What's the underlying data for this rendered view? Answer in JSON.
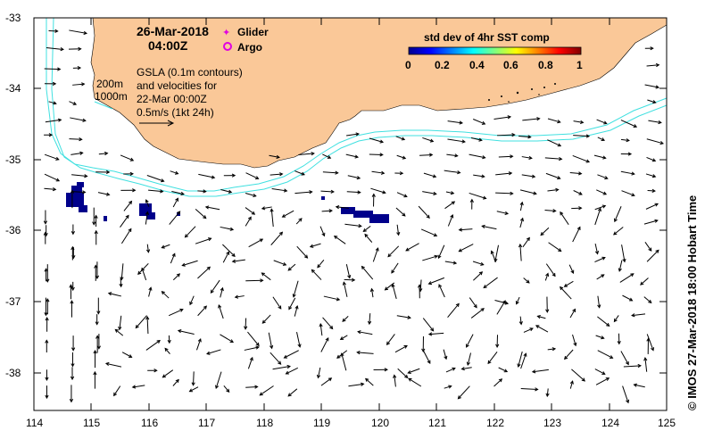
{
  "map": {
    "date": "26-Mar-2018",
    "time": "04:00Z",
    "legend": {
      "glider": "Glider",
      "argo": "Argo"
    },
    "contour_labels": [
      "200m",
      "1000m"
    ],
    "gsla_note": [
      "GSLA (0.1m contours)",
      "and velocities for",
      "22-Mar 00:00Z"
    ],
    "scale_label": "0.5m/s (1kt 24h)",
    "colorbar": {
      "title": "std dev of 4hr SST comp",
      "ticks": [
        "0",
        "0.2",
        "0.4",
        "0.6",
        "0.8",
        "1"
      ]
    },
    "credit": "© IMOS 27-Mar-2018 18:00 Hobart Time",
    "x_ticks": [
      "114",
      "115",
      "116",
      "117",
      "118",
      "119",
      "120",
      "121",
      "122",
      "123",
      "124",
      "125"
    ],
    "y_ticks": [
      "-33",
      "-34",
      "-35",
      "-36",
      "-37",
      "-38"
    ],
    "colors": {
      "land": "#fac898",
      "contour": "#40e0e0",
      "sst": "#00008b",
      "marker": "#e000e0"
    }
  }
}
